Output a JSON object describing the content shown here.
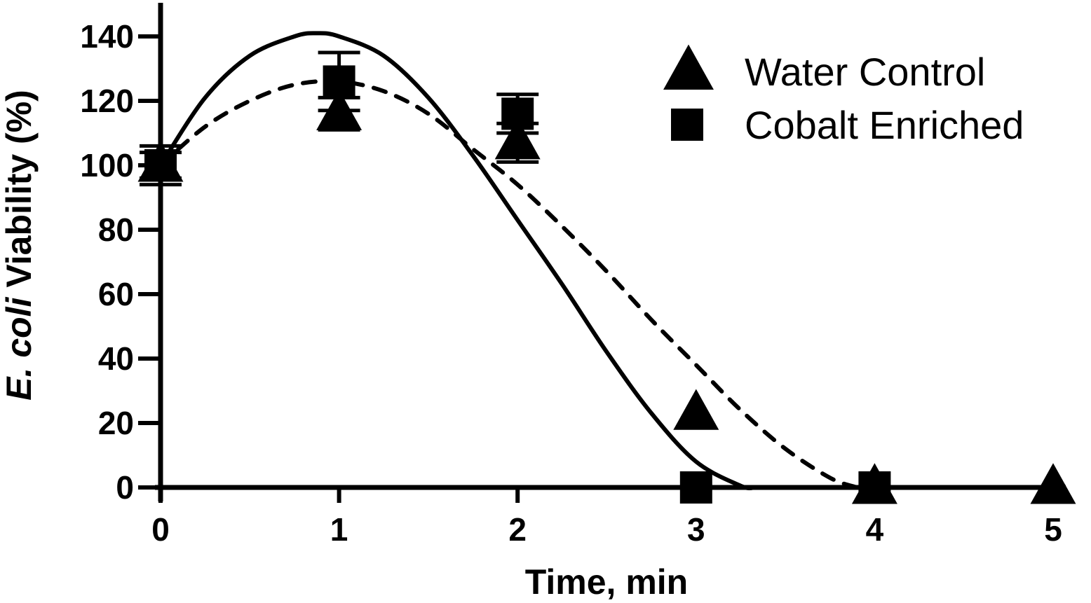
{
  "chart_data": {
    "type": "scatter",
    "xlabel": "Time, min",
    "ylabel": {
      "italic": "E. coli",
      "rest": " Viability (%)"
    },
    "xlim": [
      0,
      5
    ],
    "ylim": [
      0,
      150
    ],
    "xticks": [
      "0",
      "1",
      "2",
      "3",
      "4",
      "5"
    ],
    "yticks": [
      "0",
      "20",
      "40",
      "60",
      "80",
      "100",
      "120",
      "140"
    ],
    "grid": false,
    "legend_position": "top-right",
    "series": [
      {
        "name": "Water Control",
        "marker": "triangle",
        "line_style": "solid",
        "color": "#000000",
        "points": [
          {
            "x": 0,
            "y": 100,
            "err": 6
          },
          {
            "x": 1,
            "y": 116,
            "err": 5
          },
          {
            "x": 2,
            "y": 107,
            "err": 6
          },
          {
            "x": 3,
            "y": 23,
            "err": 0
          },
          {
            "x": 4,
            "y": 0,
            "err": 0
          },
          {
            "x": 5,
            "y": 0,
            "err": 0
          }
        ],
        "fit_curve": [
          [
            0,
            100
          ],
          [
            0.25,
            121
          ],
          [
            0.5,
            134
          ],
          [
            0.75,
            140
          ],
          [
            0.875,
            141
          ],
          [
            1,
            140
          ],
          [
            1.25,
            134
          ],
          [
            1.5,
            121
          ],
          [
            1.75,
            103
          ],
          [
            2,
            83
          ],
          [
            2.25,
            63
          ],
          [
            2.5,
            42
          ],
          [
            2.75,
            23
          ],
          [
            3,
            8
          ],
          [
            3.25,
            0.5
          ],
          [
            3.33,
            0
          ]
        ]
      },
      {
        "name": "Cobalt Enriched",
        "marker": "square",
        "line_style": "dashed",
        "color": "#000000",
        "points": [
          {
            "x": 0,
            "y": 100,
            "err": 4
          },
          {
            "x": 1,
            "y": 126,
            "err": 9
          },
          {
            "x": 2,
            "y": 116,
            "err": 6
          },
          {
            "x": 3,
            "y": 0,
            "err": 0
          },
          {
            "x": 4,
            "y": 0,
            "err": 0
          }
        ],
        "fit_curve": [
          [
            0,
            100
          ],
          [
            0.25,
            112
          ],
          [
            0.5,
            120
          ],
          [
            0.75,
            125
          ],
          [
            1,
            126
          ],
          [
            1.25,
            123
          ],
          [
            1.5,
            116
          ],
          [
            1.75,
            105
          ],
          [
            2,
            94
          ],
          [
            2.25,
            81
          ],
          [
            2.5,
            67
          ],
          [
            2.75,
            52
          ],
          [
            3,
            38
          ],
          [
            3.25,
            24
          ],
          [
            3.5,
            12
          ],
          [
            3.75,
            3
          ],
          [
            3.9,
            0
          ]
        ]
      }
    ]
  }
}
